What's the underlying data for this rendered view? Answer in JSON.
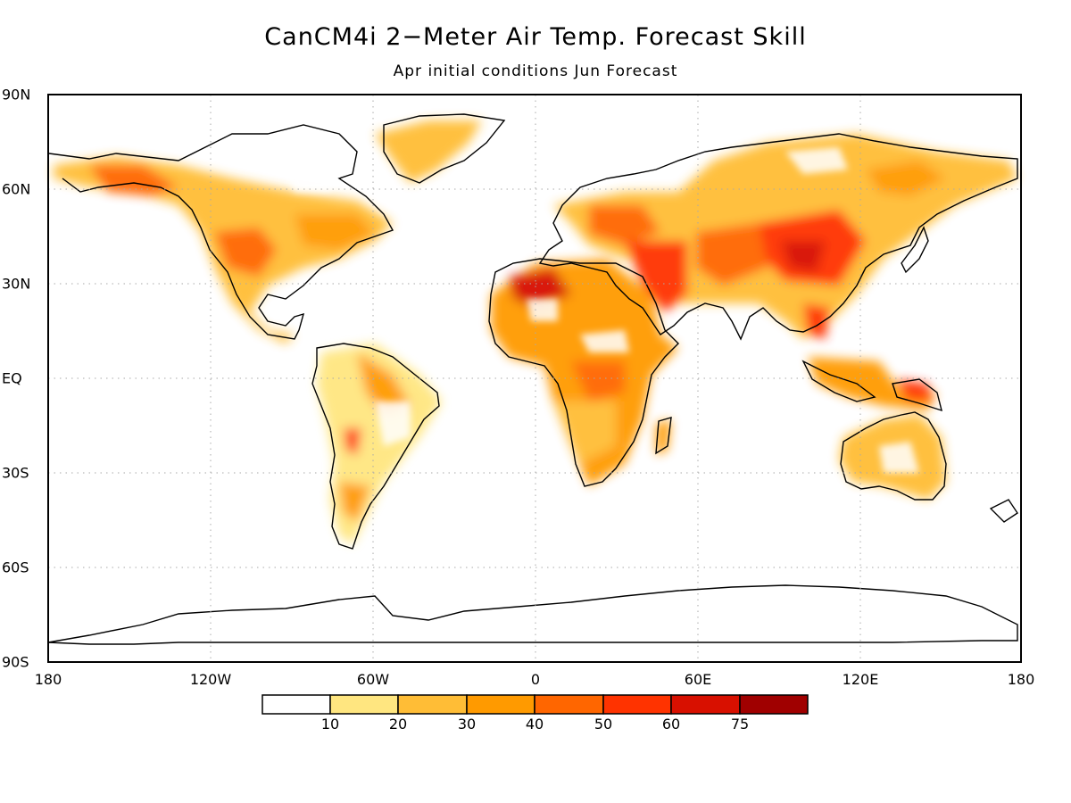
{
  "title": "CanCM4i 2−Meter Air Temp. Forecast Skill",
  "subtitle": "Apr initial conditions   Jun Forecast",
  "lat_labels": [
    "90N",
    "60N",
    "30N",
    "EQ",
    "30S",
    "60S",
    "90S"
  ],
  "lon_labels": [
    "180",
    "120W",
    "60W",
    "0",
    "60E",
    "120E",
    "180"
  ],
  "colorbar": {
    "ticks": [
      "10",
      "20",
      "30",
      "40",
      "50",
      "60",
      "75"
    ],
    "colors": [
      "#ffffff",
      "#ffe680",
      "#ffbd36",
      "#ff9a00",
      "#ff6600",
      "#ff3300",
      "#d81000",
      "#a00000"
    ]
  },
  "colors": {
    "skill_low": "#ffe680",
    "skill_mid": "#ff9a00",
    "skill_high": "#ff3300",
    "skill_max": "#a00000",
    "grid": "#aaaaaa",
    "coast": "#000000"
  }
}
